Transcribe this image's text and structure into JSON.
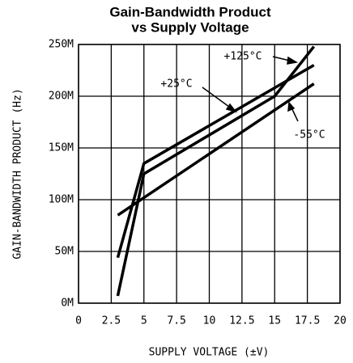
{
  "chart_data": {
    "type": "line",
    "title": [
      "Gain-Bandwidth Product",
      "vs Supply Voltage"
    ],
    "xlabel": "SUPPLY VOLTAGE (±V)",
    "ylabel": "GAIN-BANDWIDTH PRODUCT (Hz)",
    "xlim": [
      0,
      20
    ],
    "xticks": [
      0,
      2.5,
      5,
      7.5,
      10,
      12.5,
      15,
      17.5,
      20
    ],
    "ylim": [
      0,
      250000000
    ],
    "yticks": [
      {
        "value": 0,
        "label": "0M"
      },
      {
        "value": 50000000,
        "label": "50M"
      },
      {
        "value": 100000000,
        "label": "100M"
      },
      {
        "value": 150000000,
        "label": "150M"
      },
      {
        "value": 200000000,
        "label": "200M"
      },
      {
        "value": 250000000,
        "label": "250M"
      }
    ],
    "grid": true,
    "series": [
      {
        "name": "+125°C",
        "color": "#000000",
        "x": [
          3,
          5,
          15,
          18
        ],
        "values": [
          7000000,
          125000000,
          200000000,
          248000000
        ]
      },
      {
        "name": "+25°C",
        "color": "#000000",
        "x": [
          3,
          5,
          18
        ],
        "values": [
          44000000,
          135000000,
          230000000
        ]
      },
      {
        "name": "-55°C",
        "color": "#000000",
        "x": [
          3,
          18
        ],
        "values": [
          85000000,
          212000000
        ]
      }
    ]
  }
}
